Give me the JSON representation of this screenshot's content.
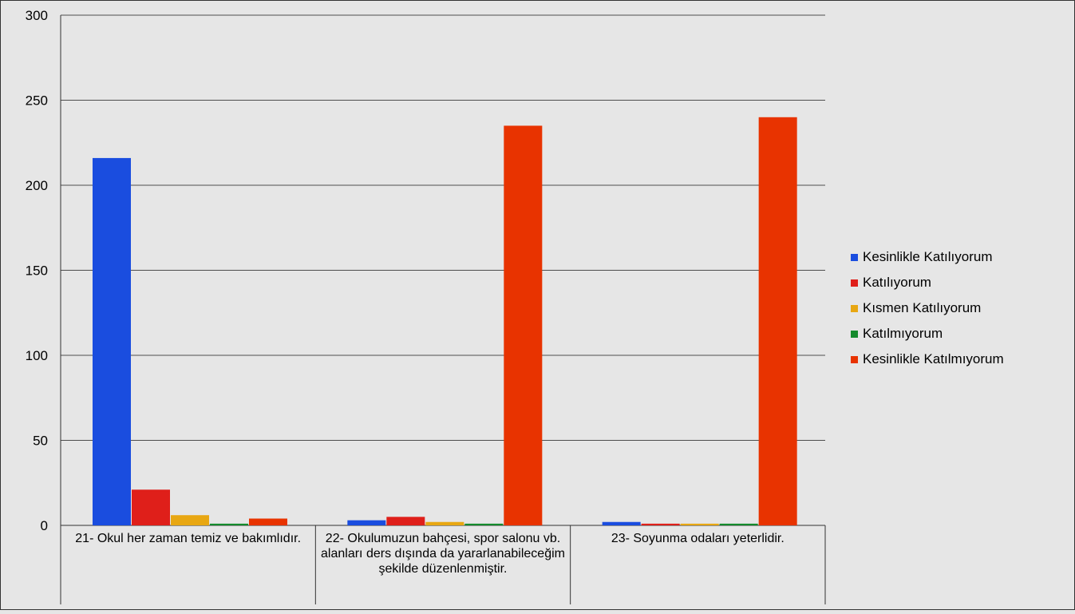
{
  "chart_data": {
    "type": "bar",
    "title": "",
    "xlabel": "",
    "ylabel": "",
    "ylim": [
      0,
      300
    ],
    "yticks": [
      0,
      50,
      100,
      150,
      200,
      250,
      300
    ],
    "grid": true,
    "legend_position": "right",
    "categories": [
      "21- Okul her zaman temiz ve bakımlıdır.",
      "22- Okulumuzun bahçesi, spor salonu vb. alanları ders dışında da yararlanabileceğim şekilde düzenlenmiştir.",
      "23- Soyunma odaları yeterlidir."
    ],
    "series": [
      {
        "name": "Kesinlikle Katılıyorum",
        "color": "#1a4ddf",
        "values": [
          216,
          3,
          2
        ]
      },
      {
        "name": "Katılıyorum",
        "color": "#df1f1a",
        "values": [
          21,
          5,
          1
        ]
      },
      {
        "name": "Kısmen Katılıyorum",
        "color": "#e8a712",
        "values": [
          6,
          2,
          1
        ]
      },
      {
        "name": "Katılmıyorum",
        "color": "#148a2c",
        "values": [
          1,
          1,
          1
        ]
      },
      {
        "name": "Kesinlikle Katılmıyorum",
        "color": "#e83300",
        "values": [
          4,
          235,
          240
        ]
      }
    ]
  }
}
